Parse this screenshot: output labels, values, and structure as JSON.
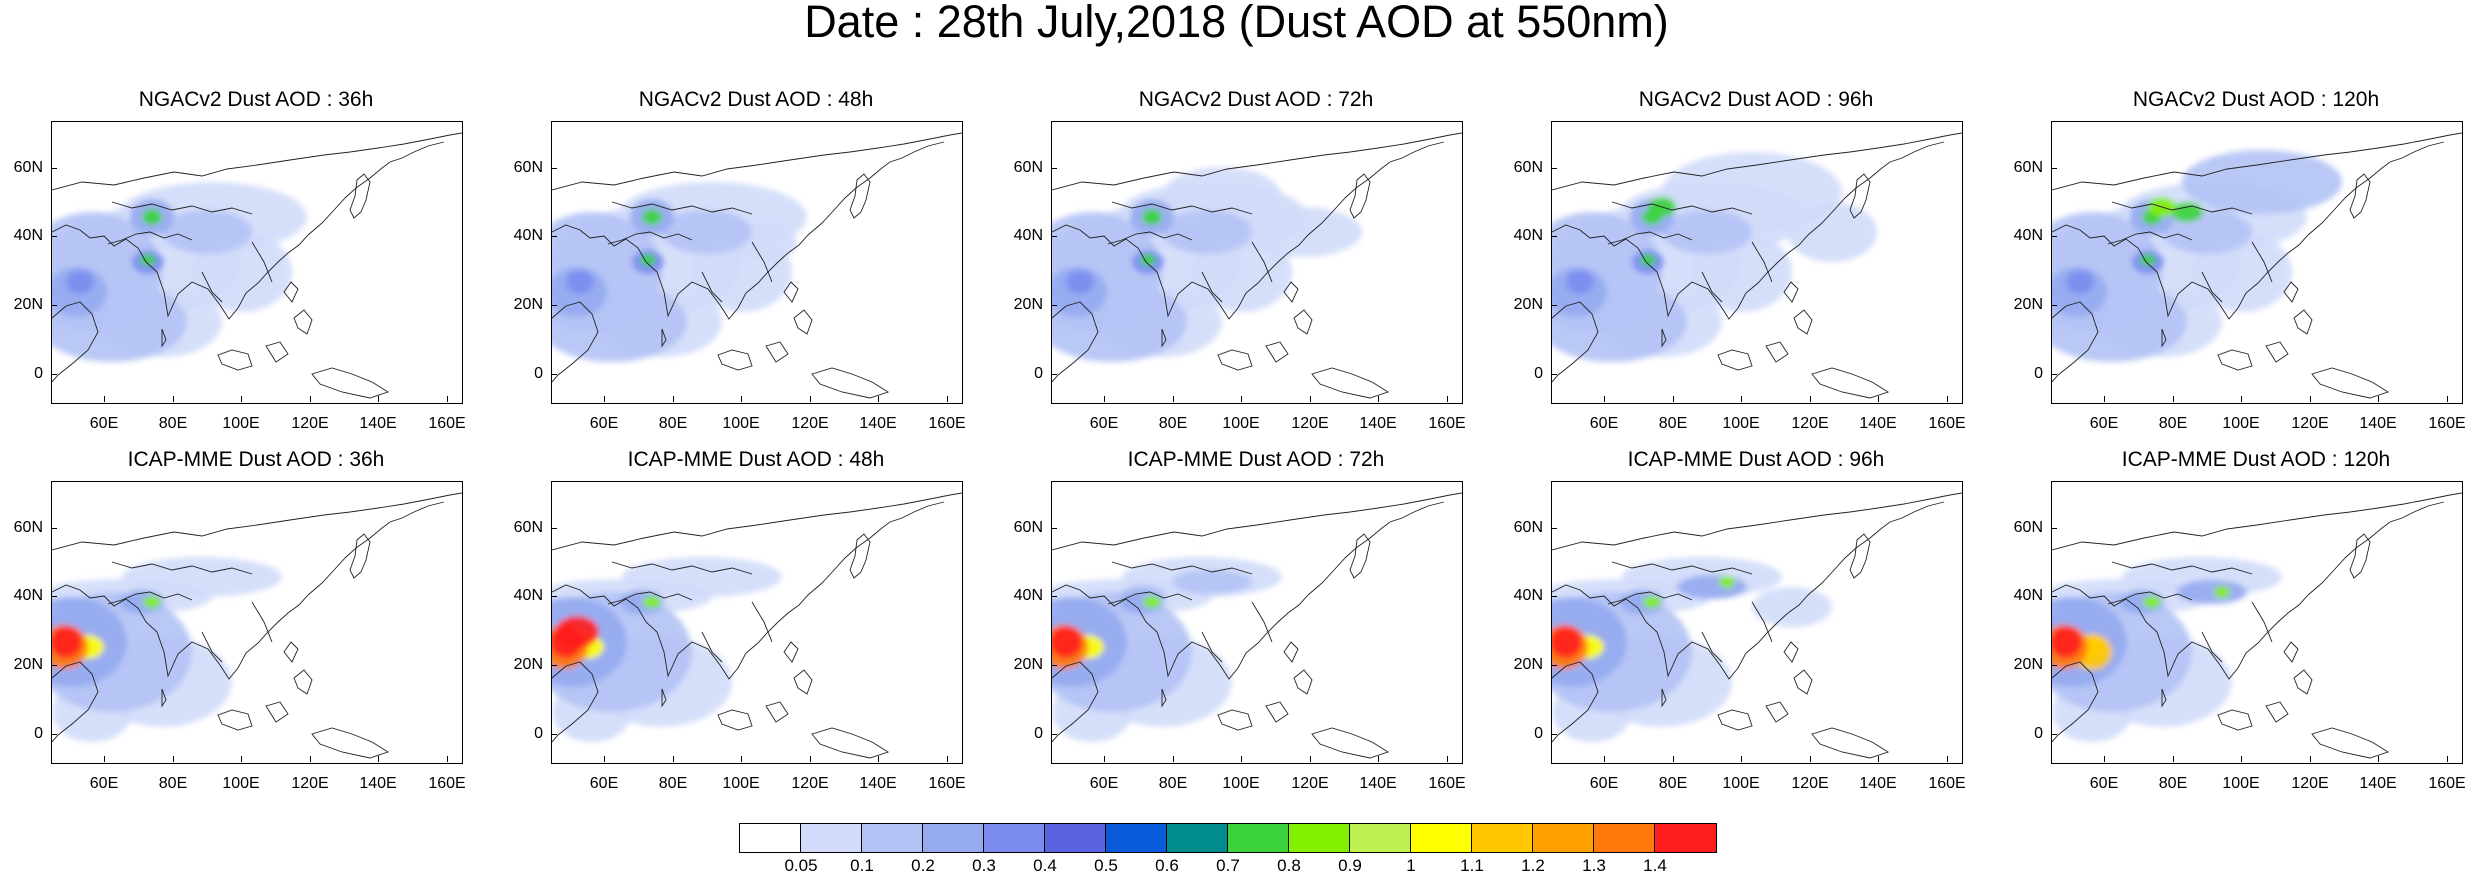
{
  "title": "Date : 28th July,2018 (Dust AOD at 550nm)",
  "lat_labels": [
    "60N",
    "40N",
    "20N",
    "0"
  ],
  "lon_labels": [
    "60E",
    "80E",
    "100E",
    "120E",
    "140E",
    "160E"
  ],
  "panels": [
    {
      "title": "NGACv2 Dust AOD : 36h",
      "model": "NGACv2",
      "lead": "36h"
    },
    {
      "title": "NGACv2 Dust AOD : 48h",
      "model": "NGACv2",
      "lead": "48h"
    },
    {
      "title": "NGACv2 Dust AOD : 72h",
      "model": "NGACv2",
      "lead": "72h"
    },
    {
      "title": "NGACv2 Dust AOD : 96h",
      "model": "NGACv2",
      "lead": "96h"
    },
    {
      "title": "NGACv2 Dust AOD : 120h",
      "model": "NGACv2",
      "lead": "120h"
    },
    {
      "title": "ICAP-MME Dust AOD : 36h",
      "model": "ICAP-MME",
      "lead": "36h"
    },
    {
      "title": "ICAP-MME Dust AOD : 48h",
      "model": "ICAP-MME",
      "lead": "48h"
    },
    {
      "title": "ICAP-MME Dust AOD : 72h",
      "model": "ICAP-MME",
      "lead": "72h"
    },
    {
      "title": "ICAP-MME Dust AOD : 96h",
      "model": "ICAP-MME",
      "lead": "96h"
    },
    {
      "title": "ICAP-MME Dust AOD : 120h",
      "model": "ICAP-MME",
      "lead": "120h"
    }
  ],
  "colorbar": {
    "labels": [
      "0.05",
      "0.1",
      "0.2",
      "0.3",
      "0.4",
      "0.5",
      "0.6",
      "0.7",
      "0.8",
      "0.9",
      "1",
      "1.1",
      "1.2",
      "1.3",
      "1.4"
    ],
    "colors": [
      "#ffffff",
      "#d2dcfa",
      "#b4c3f5",
      "#96aaf0",
      "#7d8cf0",
      "#5a64e1",
      "#0a5adc",
      "#008c8c",
      "#3cd23c",
      "#82f000",
      "#bef050",
      "#ffff00",
      "#ffc800",
      "#ffa000",
      "#ff780a",
      "#ff1e1e"
    ]
  }
}
